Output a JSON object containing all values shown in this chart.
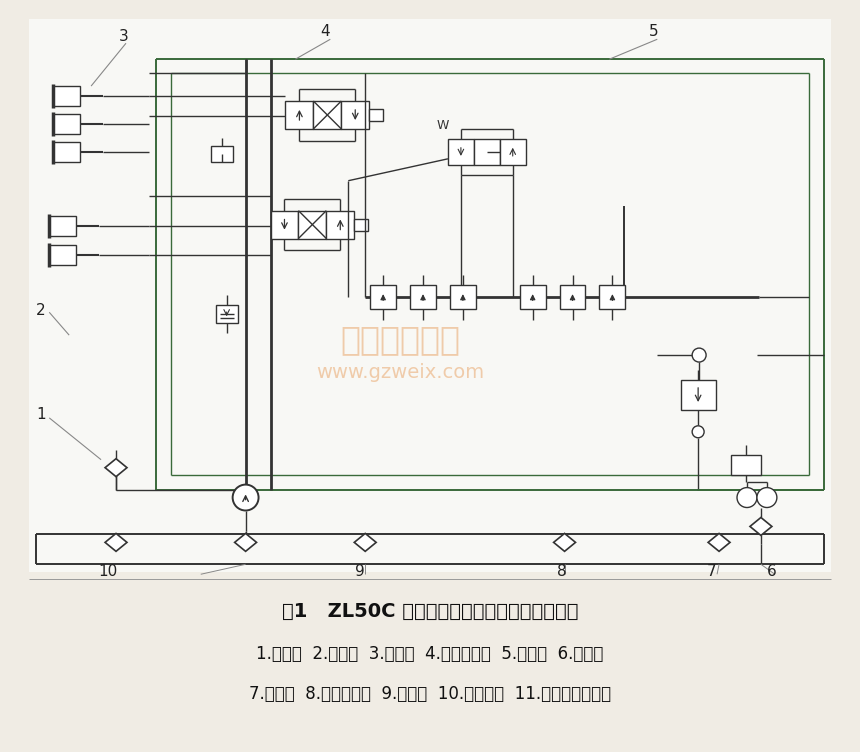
{
  "title": "图1   ZL50C 型装载机工作装置液压系统原理图",
  "caption_line1": "1.工作泵  2.铲斗缸  3.动臂缸  4.多路换向阀  5.先导阀  6.转向泵",
  "caption_line2": "7.先导泵  8.压力选择阀  9.滤油器  10.液压油箱  11.过载阀及补油阀",
  "watermark_line1": "精通维修下载",
  "watermark_line2": "www.gzweix.com",
  "bg_color": "#f0ece4",
  "diagram_bg": "#ffffff"
}
